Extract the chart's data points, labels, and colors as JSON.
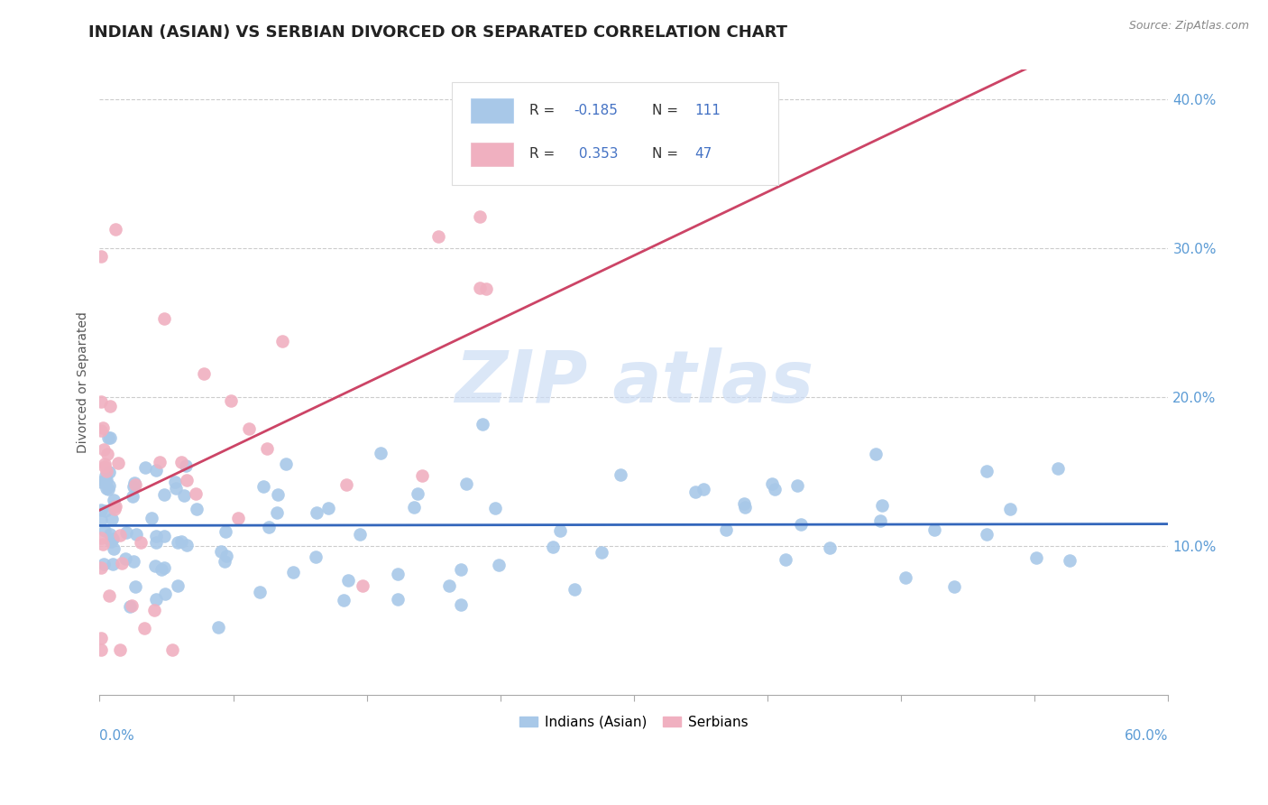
{
  "title": "INDIAN (ASIAN) VS SERBIAN DIVORCED OR SEPARATED CORRELATION CHART",
  "source": "Source: ZipAtlas.com",
  "ylabel": "Divorced or Separated",
  "xmin": 0.0,
  "xmax": 0.6,
  "ymin": 0.0,
  "ymax": 0.42,
  "yticks": [
    0.1,
    0.2,
    0.3,
    0.4
  ],
  "ytick_labels": [
    "10.0%",
    "20.0%",
    "30.0%",
    "40.0%"
  ],
  "blue_color": "#a8c8e8",
  "pink_color": "#f0b0c0",
  "blue_line_color": "#3366bb",
  "pink_line_color": "#cc4466",
  "blue_r_color": "#4472c4",
  "pink_r_color": "#4472c4",
  "n_color": "#4472c4",
  "label_color": "#333333",
  "blue_N": 111,
  "pink_N": 47,
  "blue_R": -0.185,
  "pink_R": 0.353,
  "title_fontsize": 13,
  "tick_label_color": "#5b9bd5",
  "background_color": "#ffffff",
  "grid_color": "#cccccc",
  "watermark_color": "#ccddf5",
  "legend_label_color": "#333333"
}
